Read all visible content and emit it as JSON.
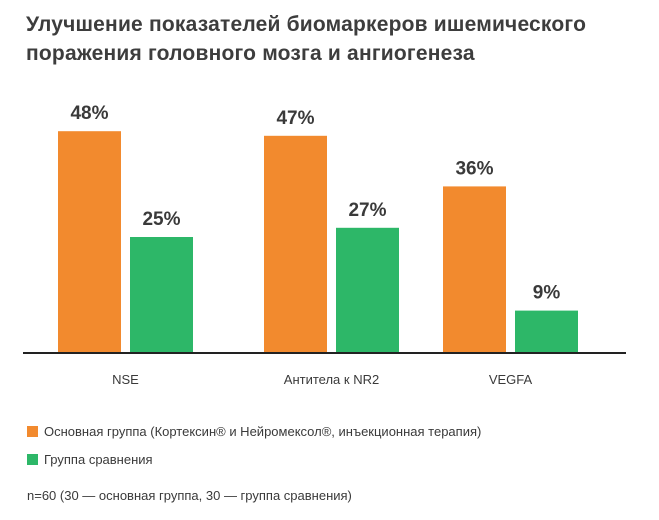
{
  "title": "Улучшение показателей биомаркеров ишемического поражения головного мозга и ангиогенеза",
  "colors": {
    "main": "#f28a2e",
    "comparison": "#2db768",
    "axis": "#222222"
  },
  "chart_data": {
    "type": "bar",
    "categories": [
      "NSE",
      "Антитела к NR2",
      "VEGFA"
    ],
    "series": [
      {
        "name": "Основная группа (Кортексин® и Нейромексол®, инъекционная терапия)",
        "values": [
          48,
          47,
          36
        ],
        "labels": [
          "48%",
          "47%",
          "36%"
        ]
      },
      {
        "name": "Группа сравнения",
        "values": [
          25,
          27,
          9
        ],
        "labels": [
          "25%",
          "27%",
          "9%"
        ]
      }
    ],
    "ylim": [
      0,
      50
    ],
    "grid": false,
    "legend_placement": "bottom-left"
  },
  "footnote": "n=60 (30 — основная группа, 30 — группа сравнения)"
}
